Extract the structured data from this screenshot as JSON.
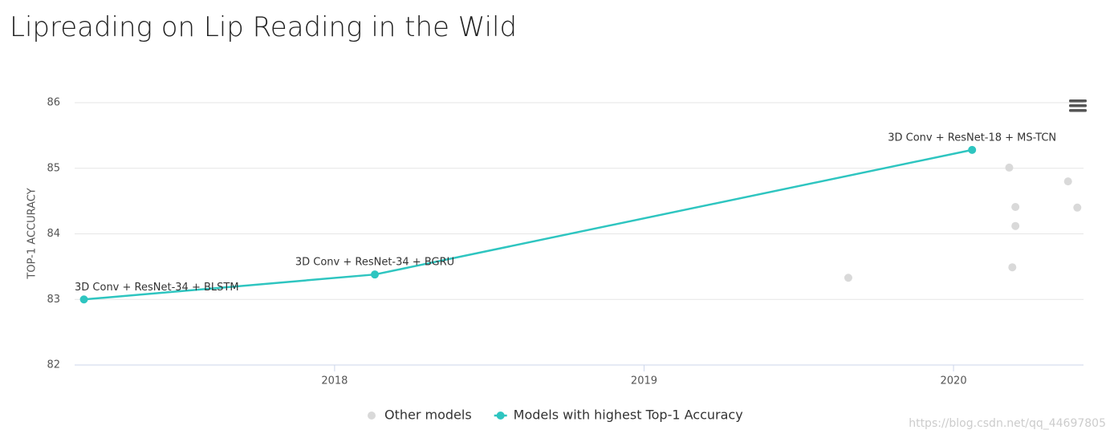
{
  "chart_data": {
    "type": "line",
    "title": "Lipreading on Lip Reading in the Wild",
    "y_label": "TOP-1 ACCURACY",
    "xlim": [
      2017.16,
      2020.42
    ],
    "xticks": [
      2018,
      2019,
      2020
    ],
    "ylim": [
      82,
      86
    ],
    "yticks": [
      82,
      83,
      84,
      85,
      86
    ],
    "grid": true,
    "legend": "bottom",
    "series": [
      {
        "name": "Other models",
        "type": "scatter",
        "color": "#d9d9d9",
        "x": [
          2019.66,
          2020.18,
          2020.2,
          2020.2,
          2020.19,
          2020.37,
          2020.4
        ],
        "values": [
          83.33,
          85.01,
          84.41,
          84.12,
          83.49,
          84.8,
          84.4
        ]
      },
      {
        "name": "Models with highest Top-1 Accuracy",
        "type": "line",
        "color": "#2ec5c0",
        "x": [
          2017.19,
          2018.13,
          2020.06
        ],
        "values": [
          83.0,
          83.38,
          85.28
        ],
        "labels": [
          "3D Conv + ResNet-34 + BLSTM",
          "3D Conv + ResNet-34 + BGRU",
          "3D Conv + ResNet-18 + MS-TCN"
        ]
      }
    ],
    "watermark": "https://blog.csdn.net/qq_44697805"
  }
}
